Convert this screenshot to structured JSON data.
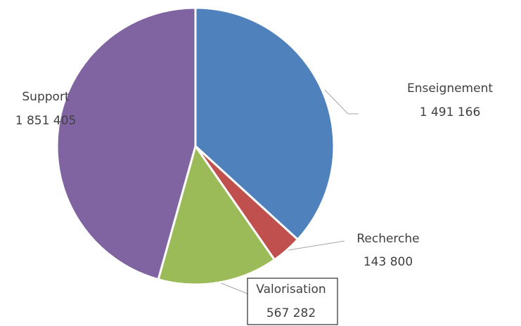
{
  "chart_data": {
    "type": "pie",
    "categories": [
      "Enseignement",
      "Recherche",
      "Valorisation",
      "Support"
    ],
    "values": [
      1491166,
      143800,
      567282,
      1851405
    ],
    "value_labels": [
      "1 491 166",
      "143 800",
      "567 282",
      "1 851 405"
    ],
    "colors": [
      "#4f81bd",
      "#c0504d",
      "#9bbb59",
      "#8064a2"
    ]
  }
}
